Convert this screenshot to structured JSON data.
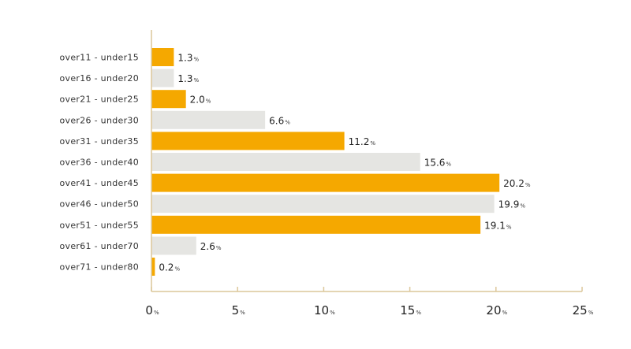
{
  "chart_data": {
    "type": "bar",
    "orientation": "horizontal",
    "categories": [
      "over11 - under15",
      "over16 - under20",
      "over21 - under25",
      "over26 - under30",
      "over31 - under35",
      "over36 - under40",
      "over41 - under45",
      "over46 - under50",
      "over51 - under55",
      "over61 - under70",
      "over71 - under80"
    ],
    "values": [
      1.3,
      1.3,
      2.0,
      6.6,
      11.2,
      15.6,
      20.2,
      19.9,
      19.1,
      2.6,
      0.2
    ],
    "value_labels": [
      "1.3",
      "1.3",
      "2.0",
      "6.6",
      "11.2",
      "15.6",
      "20.2",
      "19.9",
      "19.1",
      "2.6",
      "0.2"
    ],
    "unit": "%",
    "xlim": [
      0,
      25
    ],
    "xticks": [
      0,
      5,
      10,
      15,
      20,
      25
    ],
    "xtick_labels": [
      "0",
      "5",
      "10",
      "15",
      "20",
      "25"
    ],
    "title": "",
    "xlabel": "",
    "ylabel": "",
    "colors": {
      "bar_primary": "#f5a800",
      "bar_alternate": "#e5e5e2",
      "axis": "#dcc79a"
    }
  }
}
